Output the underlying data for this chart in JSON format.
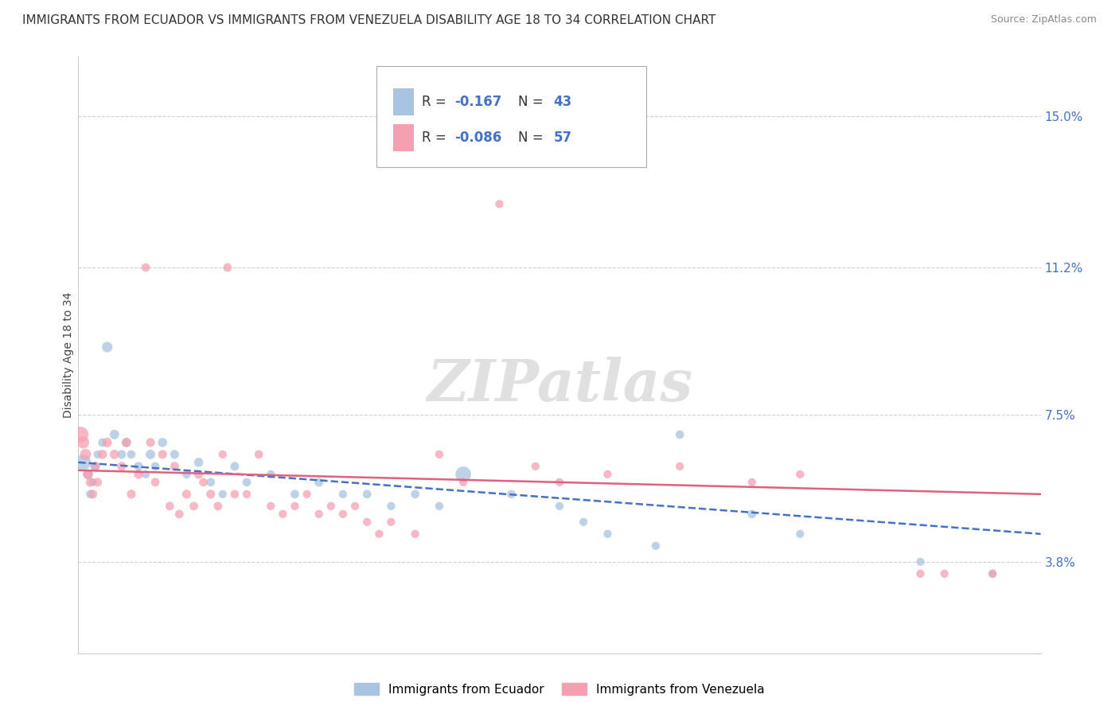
{
  "title": "IMMIGRANTS FROM ECUADOR VS IMMIGRANTS FROM VENEZUELA DISABILITY AGE 18 TO 34 CORRELATION CHART",
  "source": "Source: ZipAtlas.com",
  "ylabel": "Disability Age 18 to 34",
  "ytick_values": [
    3.8,
    7.5,
    11.2,
    15.0
  ],
  "xlim": [
    0.0,
    40.0
  ],
  "ylim": [
    1.5,
    16.5
  ],
  "ecuador_color": "#a8c4e0",
  "venezuela_color": "#f4a0b0",
  "ecuador_line_color": "#4472c4",
  "venezuela_line_color": "#e06080",
  "ecuador_points": [
    [
      0.2,
      6.3,
      200
    ],
    [
      0.4,
      6.0,
      80
    ],
    [
      0.5,
      5.5,
      60
    ],
    [
      0.6,
      5.8,
      50
    ],
    [
      0.7,
      6.2,
      70
    ],
    [
      0.8,
      6.5,
      55
    ],
    [
      1.0,
      6.8,
      60
    ],
    [
      1.2,
      9.2,
      90
    ],
    [
      1.5,
      7.0,
      75
    ],
    [
      1.8,
      6.5,
      65
    ],
    [
      2.0,
      6.8,
      70
    ],
    [
      2.2,
      6.5,
      60
    ],
    [
      2.5,
      6.2,
      65
    ],
    [
      2.8,
      6.0,
      55
    ],
    [
      3.0,
      6.5,
      75
    ],
    [
      3.2,
      6.2,
      60
    ],
    [
      3.5,
      6.8,
      70
    ],
    [
      4.0,
      6.5,
      65
    ],
    [
      4.5,
      6.0,
      60
    ],
    [
      5.0,
      6.3,
      70
    ],
    [
      5.5,
      5.8,
      60
    ],
    [
      6.0,
      5.5,
      55
    ],
    [
      6.5,
      6.2,
      65
    ],
    [
      7.0,
      5.8,
      60
    ],
    [
      8.0,
      6.0,
      55
    ],
    [
      9.0,
      5.5,
      60
    ],
    [
      10.0,
      5.8,
      65
    ],
    [
      11.0,
      5.5,
      55
    ],
    [
      12.0,
      5.5,
      60
    ],
    [
      13.0,
      5.2,
      55
    ],
    [
      14.0,
      5.5,
      60
    ],
    [
      15.0,
      5.2,
      55
    ],
    [
      16.0,
      6.0,
      200
    ],
    [
      18.0,
      5.5,
      60
    ],
    [
      20.0,
      5.2,
      55
    ],
    [
      21.0,
      4.8,
      55
    ],
    [
      22.0,
      4.5,
      55
    ],
    [
      24.0,
      4.2,
      55
    ],
    [
      25.0,
      7.0,
      60
    ],
    [
      28.0,
      5.0,
      60
    ],
    [
      30.0,
      4.5,
      55
    ],
    [
      35.0,
      3.8,
      55
    ],
    [
      38.0,
      3.5,
      55
    ]
  ],
  "venezuela_points": [
    [
      0.1,
      7.0,
      200
    ],
    [
      0.2,
      6.8,
      120
    ],
    [
      0.3,
      6.5,
      100
    ],
    [
      0.4,
      6.0,
      80
    ],
    [
      0.5,
      5.8,
      70
    ],
    [
      0.6,
      5.5,
      65
    ],
    [
      0.7,
      6.2,
      70
    ],
    [
      0.8,
      5.8,
      65
    ],
    [
      1.0,
      6.5,
      70
    ],
    [
      1.2,
      6.8,
      75
    ],
    [
      1.5,
      6.5,
      70
    ],
    [
      1.8,
      6.2,
      65
    ],
    [
      2.0,
      6.8,
      70
    ],
    [
      2.2,
      5.5,
      65
    ],
    [
      2.5,
      6.0,
      70
    ],
    [
      2.8,
      11.2,
      60
    ],
    [
      3.0,
      6.8,
      65
    ],
    [
      3.2,
      5.8,
      60
    ],
    [
      3.5,
      6.5,
      65
    ],
    [
      3.8,
      5.2,
      60
    ],
    [
      4.0,
      6.2,
      65
    ],
    [
      4.2,
      5.0,
      60
    ],
    [
      4.5,
      5.5,
      65
    ],
    [
      4.8,
      5.2,
      60
    ],
    [
      5.0,
      6.0,
      65
    ],
    [
      5.2,
      5.8,
      60
    ],
    [
      5.5,
      5.5,
      65
    ],
    [
      5.8,
      5.2,
      60
    ],
    [
      6.0,
      6.5,
      55
    ],
    [
      6.2,
      11.2,
      60
    ],
    [
      6.5,
      5.5,
      60
    ],
    [
      7.0,
      5.5,
      55
    ],
    [
      7.5,
      6.5,
      60
    ],
    [
      8.0,
      5.2,
      55
    ],
    [
      8.5,
      5.0,
      55
    ],
    [
      9.0,
      5.2,
      55
    ],
    [
      9.5,
      5.5,
      55
    ],
    [
      10.0,
      5.0,
      55
    ],
    [
      10.5,
      5.2,
      55
    ],
    [
      11.0,
      5.0,
      55
    ],
    [
      11.5,
      5.2,
      55
    ],
    [
      12.0,
      4.8,
      55
    ],
    [
      12.5,
      4.5,
      55
    ],
    [
      13.0,
      4.8,
      55
    ],
    [
      14.0,
      4.5,
      55
    ],
    [
      15.0,
      6.5,
      55
    ],
    [
      16.0,
      5.8,
      55
    ],
    [
      17.5,
      12.8,
      55
    ],
    [
      19.0,
      6.2,
      55
    ],
    [
      20.0,
      5.8,
      55
    ],
    [
      22.0,
      6.0,
      55
    ],
    [
      25.0,
      6.2,
      55
    ],
    [
      28.0,
      5.8,
      55
    ],
    [
      30.0,
      6.0,
      55
    ],
    [
      35.0,
      3.5,
      55
    ],
    [
      36.0,
      3.5,
      55
    ],
    [
      38.0,
      3.5,
      55
    ]
  ],
  "ecuador_regression": {
    "x_start": 0.0,
    "y_start": 6.3,
    "x_end": 40.0,
    "y_end": 4.5
  },
  "venezuela_regression": {
    "x_start": 0.0,
    "y_start": 6.1,
    "x_end": 40.0,
    "y_end": 5.5
  },
  "watermark": "ZIPatlas",
  "background_color": "#ffffff",
  "grid_color": "#d0d0d0",
  "title_fontsize": 11,
  "label_fontsize": 10,
  "tick_fontsize": 11
}
